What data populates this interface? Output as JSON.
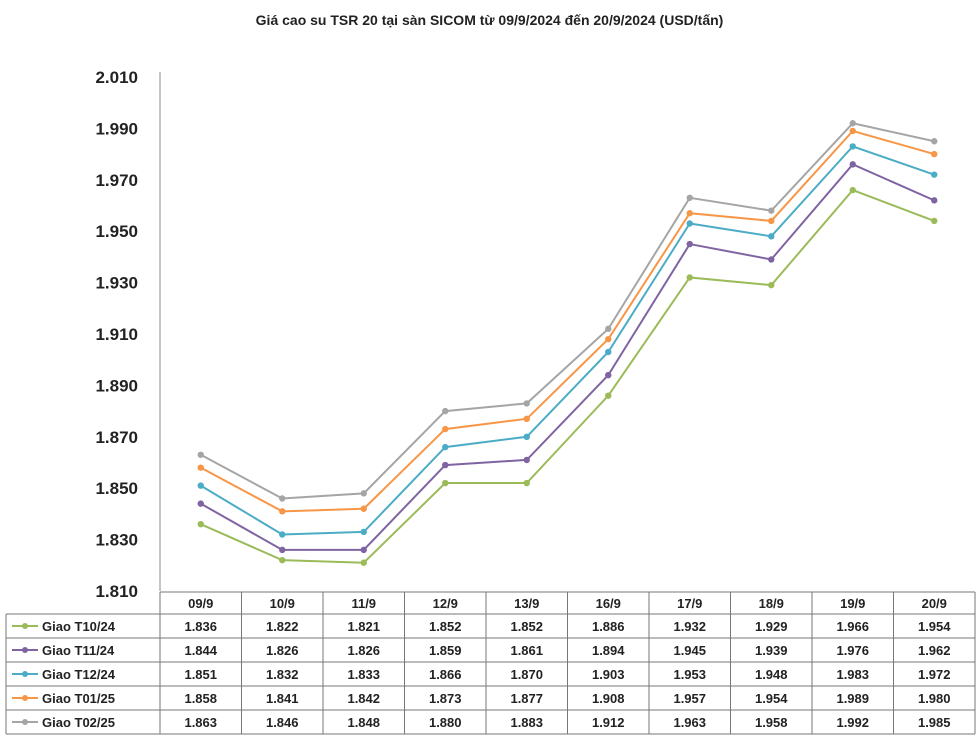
{
  "chart_data": {
    "type": "line",
    "title": "Giá cao su TSR 20 tại sàn SICOM từ 09/9/2024 đến 20/9/2024 (USD/tấn)",
    "xlabel": "",
    "ylabel": "",
    "ylim": [
      1810,
      2010
    ],
    "yticks": [
      2010,
      1990,
      1970,
      1950,
      1930,
      1910,
      1890,
      1870,
      1850,
      1830,
      1810
    ],
    "ytick_labels": [
      "2.010",
      "1.990",
      "1.970",
      "1.950",
      "1.930",
      "1.910",
      "1.890",
      "1.870",
      "1.850",
      "1.830",
      "1.810"
    ],
    "grid": false,
    "legend": "data-table-below",
    "categories": [
      "09/9",
      "10/9",
      "11/9",
      "12/9",
      "13/9",
      "16/9",
      "17/9",
      "18/9",
      "19/9",
      "20/9"
    ],
    "series": [
      {
        "name": "Giao T10/24",
        "color": "#9bbb59",
        "values": [
          1836,
          1822,
          1821,
          1852,
          1852,
          1886,
          1932,
          1929,
          1966,
          1954
        ],
        "labels": [
          "1.836",
          "1.822",
          "1.821",
          "1.852",
          "1.852",
          "1.886",
          "1.932",
          "1.929",
          "1.966",
          "1.954"
        ]
      },
      {
        "name": "Giao T11/24",
        "color": "#8064a2",
        "values": [
          1844,
          1826,
          1826,
          1859,
          1861,
          1894,
          1945,
          1939,
          1976,
          1962
        ],
        "labels": [
          "1.844",
          "1.826",
          "1.826",
          "1.859",
          "1.861",
          "1.894",
          "1.945",
          "1.939",
          "1.976",
          "1.962"
        ]
      },
      {
        "name": "Giao T12/24",
        "color": "#4bacc6",
        "values": [
          1851,
          1832,
          1833,
          1866,
          1870,
          1903,
          1953,
          1948,
          1983,
          1972
        ],
        "labels": [
          "1.851",
          "1.832",
          "1.833",
          "1.866",
          "1.870",
          "1.903",
          "1.953",
          "1.948",
          "1.983",
          "1.972"
        ]
      },
      {
        "name": "Giao T01/25",
        "color": "#f79646",
        "values": [
          1858,
          1841,
          1842,
          1873,
          1877,
          1908,
          1957,
          1954,
          1989,
          1980
        ],
        "labels": [
          "1.858",
          "1.841",
          "1.842",
          "1.873",
          "1.877",
          "1.908",
          "1.957",
          "1.954",
          "1.989",
          "1.980"
        ]
      },
      {
        "name": "Giao T02/25",
        "color": "#a5a5a5",
        "values": [
          1863,
          1846,
          1848,
          1880,
          1883,
          1912,
          1963,
          1958,
          1992,
          1985
        ],
        "labels": [
          "1.863",
          "1.846",
          "1.848",
          "1.880",
          "1.883",
          "1.912",
          "1.963",
          "1.958",
          "1.992",
          "1.985"
        ]
      }
    ]
  }
}
